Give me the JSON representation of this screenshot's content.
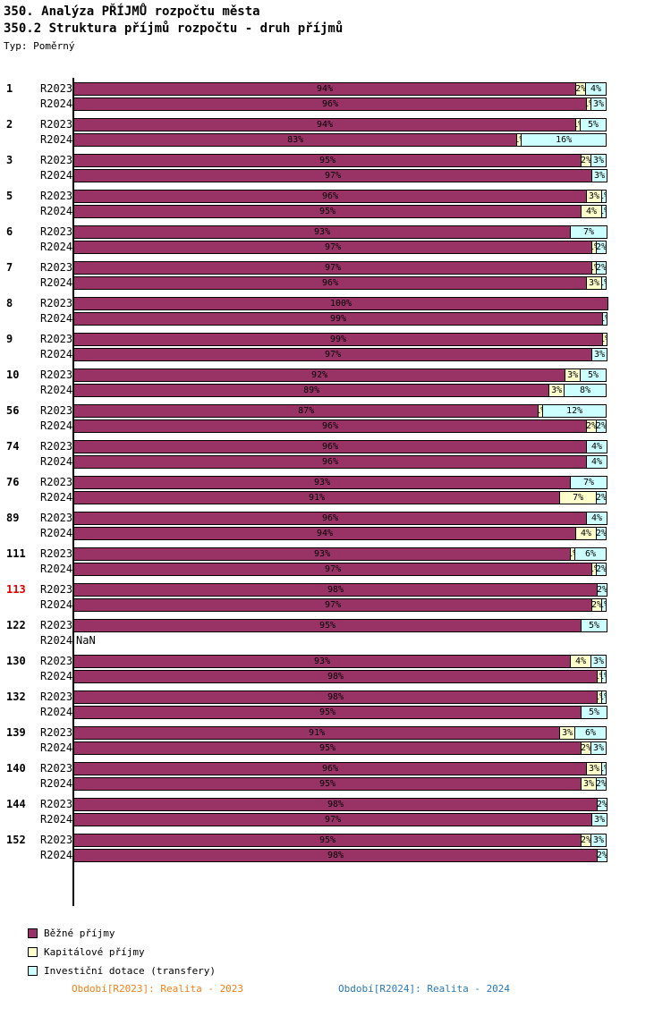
{
  "header": {
    "title": "350. Analýza PŘÍJMŮ rozpočtu města",
    "subtitle": "350.2 Struktura příjmů rozpočtu - druh příjmů",
    "type_label": "Typ: Poměrný"
  },
  "chart_data": {
    "type": "bar",
    "orientation": "horizontal",
    "stacked": true,
    "unit": "%",
    "x_range": [
      0,
      100
    ],
    "grid": false,
    "missing_value_label": "NaN",
    "highlight_color": "#dd0000",
    "series": [
      {
        "key": "bezne-prijmy",
        "name": "Běžné příjmy",
        "color": "#993366"
      },
      {
        "key": "kapitalove-prijmy",
        "name": "Kapitálové příjmy",
        "color": "#FFFFCC"
      },
      {
        "key": "investicni-dotace",
        "name": "Investiční dotace (transfery)",
        "color": "#CCFFFF"
      }
    ],
    "groups": [
      {
        "id": "1",
        "highlight": false,
        "rows": [
          {
            "period": "R2023",
            "values": [
              94,
              2,
              4
            ]
          },
          {
            "period": "R2024",
            "values": [
              96,
              1,
              3
            ]
          }
        ]
      },
      {
        "id": "2",
        "highlight": false,
        "rows": [
          {
            "period": "R2023",
            "values": [
              94,
              1,
              5
            ]
          },
          {
            "period": "R2024",
            "values": [
              83,
              1,
              16
            ]
          }
        ]
      },
      {
        "id": "3",
        "highlight": false,
        "rows": [
          {
            "period": "R2023",
            "values": [
              95,
              2,
              3
            ]
          },
          {
            "period": "R2024",
            "values": [
              97,
              0,
              3
            ]
          }
        ]
      },
      {
        "id": "5",
        "highlight": false,
        "rows": [
          {
            "period": "R2023",
            "values": [
              96,
              3,
              1
            ]
          },
          {
            "period": "R2024",
            "values": [
              95,
              4,
              1
            ]
          }
        ]
      },
      {
        "id": "6",
        "highlight": false,
        "rows": [
          {
            "period": "R2023",
            "values": [
              93,
              0,
              7
            ]
          },
          {
            "period": "R2024",
            "values": [
              97,
              1,
              2
            ]
          }
        ]
      },
      {
        "id": "7",
        "highlight": false,
        "rows": [
          {
            "period": "R2023",
            "values": [
              97,
              1,
              2
            ]
          },
          {
            "period": "R2024",
            "values": [
              96,
              3,
              1
            ]
          }
        ]
      },
      {
        "id": "8",
        "highlight": false,
        "rows": [
          {
            "period": "R2023",
            "values": [
              100,
              0,
              0
            ]
          },
          {
            "period": "R2024",
            "values": [
              99,
              0,
              1
            ]
          }
        ]
      },
      {
        "id": "9",
        "highlight": false,
        "rows": [
          {
            "period": "R2023",
            "values": [
              99,
              1,
              0
            ]
          },
          {
            "period": "R2024",
            "values": [
              97,
              0,
              3
            ]
          }
        ]
      },
      {
        "id": "10",
        "highlight": false,
        "rows": [
          {
            "period": "R2023",
            "values": [
              92,
              3,
              5
            ]
          },
          {
            "period": "R2024",
            "values": [
              89,
              3,
              8
            ]
          }
        ]
      },
      {
        "id": "56",
        "highlight": false,
        "rows": [
          {
            "period": "R2023",
            "values": [
              87,
              1,
              12
            ]
          },
          {
            "period": "R2024",
            "values": [
              96,
              2,
              2
            ]
          }
        ]
      },
      {
        "id": "74",
        "highlight": false,
        "rows": [
          {
            "period": "R2023",
            "values": [
              96,
              0,
              4
            ]
          },
          {
            "period": "R2024",
            "values": [
              96,
              0,
              4
            ]
          }
        ]
      },
      {
        "id": "76",
        "highlight": false,
        "rows": [
          {
            "period": "R2023",
            "values": [
              93,
              0,
              7
            ]
          },
          {
            "period": "R2024",
            "values": [
              91,
              7,
              2
            ]
          }
        ]
      },
      {
        "id": "89",
        "highlight": false,
        "rows": [
          {
            "period": "R2023",
            "values": [
              96,
              0,
              4
            ]
          },
          {
            "period": "R2024",
            "values": [
              94,
              4,
              2
            ]
          }
        ]
      },
      {
        "id": "111",
        "highlight": false,
        "rows": [
          {
            "period": "R2023",
            "values": [
              93,
              1,
              6
            ]
          },
          {
            "period": "R2024",
            "values": [
              97,
              1,
              2
            ]
          }
        ]
      },
      {
        "id": "113",
        "highlight": true,
        "rows": [
          {
            "period": "R2023",
            "values": [
              98,
              0,
              2
            ]
          },
          {
            "period": "R2024",
            "values": [
              97,
              2,
              1
            ]
          }
        ]
      },
      {
        "id": "122",
        "highlight": false,
        "rows": [
          {
            "period": "R2023",
            "values": [
              95,
              0,
              5
            ]
          },
          {
            "period": "R2024",
            "values": null,
            "nan": true
          }
        ]
      },
      {
        "id": "130",
        "highlight": false,
        "rows": [
          {
            "period": "R2023",
            "values": [
              93,
              4,
              3
            ]
          },
          {
            "period": "R2024",
            "values": [
              98,
              1,
              1
            ]
          }
        ]
      },
      {
        "id": "132",
        "highlight": false,
        "rows": [
          {
            "period": "R2023",
            "values": [
              98,
              1,
              1
            ]
          },
          {
            "period": "R2024",
            "values": [
              95,
              0,
              5
            ]
          }
        ]
      },
      {
        "id": "139",
        "highlight": false,
        "rows": [
          {
            "period": "R2023",
            "values": [
              91,
              3,
              6
            ]
          },
          {
            "period": "R2024",
            "values": [
              95,
              2,
              3
            ]
          }
        ]
      },
      {
        "id": "140",
        "highlight": false,
        "rows": [
          {
            "period": "R2023",
            "values": [
              96,
              3,
              1
            ]
          },
          {
            "period": "R2024",
            "values": [
              95,
              3,
              2
            ]
          }
        ]
      },
      {
        "id": "144",
        "highlight": false,
        "rows": [
          {
            "period": "R2023",
            "values": [
              98,
              0,
              2
            ]
          },
          {
            "period": "R2024",
            "values": [
              97,
              0,
              3
            ]
          }
        ]
      },
      {
        "id": "152",
        "highlight": false,
        "rows": [
          {
            "period": "R2023",
            "values": [
              95,
              2,
              3
            ]
          },
          {
            "period": "R2024",
            "values": [
              98,
              0,
              2
            ]
          }
        ]
      }
    ]
  },
  "footer": {
    "left": {
      "text": "Období[R2023]: Realita - 2023",
      "color": "#f08019"
    },
    "right": {
      "text": "Období[R2024]: Realita - 2024",
      "color": "#2878b8"
    }
  }
}
